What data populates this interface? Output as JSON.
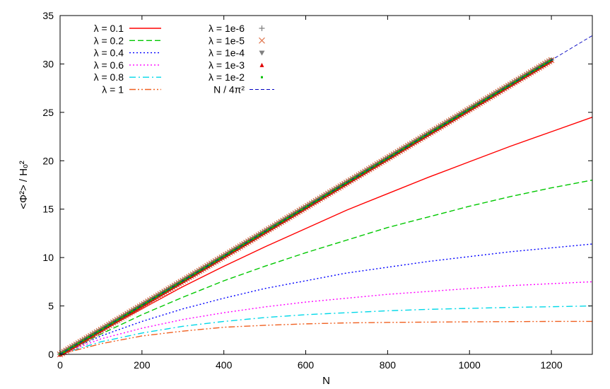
{
  "chart_data": {
    "type": "line",
    "xlabel": "N",
    "ylabel": "<Φ²> / Hₒ²",
    "xlim": [
      0,
      1300
    ],
    "ylim": [
      0,
      35
    ],
    "x_ticks": [
      "0",
      "200",
      "400",
      "600",
      "800",
      "1000",
      "1200"
    ],
    "y_ticks": [
      "0",
      "5",
      "10",
      "15",
      "20",
      "25",
      "30",
      "35"
    ],
    "grid": false,
    "legend_position": "top-left",
    "series": [
      {
        "name": "λ = 0.1",
        "style": "solid",
        "color": "#ff0000",
        "x": [
          0,
          100,
          200,
          300,
          400,
          500,
          600,
          700,
          800,
          900,
          1000,
          1100,
          1200,
          1300
        ],
        "values": [
          0,
          2.4,
          4.7,
          7.0,
          9.1,
          11.1,
          13.0,
          14.9,
          16.6,
          18.3,
          19.9,
          21.5,
          23.0,
          24.5
        ]
      },
      {
        "name": "λ = 0.2",
        "style": "dashed",
        "color": "#00c800",
        "x": [
          0,
          100,
          200,
          300,
          400,
          500,
          600,
          700,
          800,
          900,
          1000,
          1100,
          1200,
          1300
        ],
        "values": [
          0,
          2.1,
          4.1,
          5.9,
          7.6,
          9.1,
          10.5,
          11.8,
          13.1,
          14.2,
          15.3,
          16.3,
          17.2,
          18.0
        ]
      },
      {
        "name": "λ = 0.4",
        "style": "dotted",
        "color": "#0000ff",
        "x": [
          0,
          100,
          200,
          300,
          400,
          500,
          600,
          700,
          800,
          900,
          1000,
          1100,
          1200,
          1300
        ],
        "values": [
          0,
          1.9,
          3.4,
          4.7,
          5.8,
          6.8,
          7.6,
          8.4,
          9.0,
          9.6,
          10.1,
          10.6,
          11.0,
          11.4
        ]
      },
      {
        "name": "λ = 0.6",
        "style": "dotted",
        "color": "#ff00ff",
        "x": [
          0,
          100,
          200,
          300,
          400,
          500,
          600,
          700,
          800,
          900,
          1000,
          1100,
          1200,
          1300
        ],
        "values": [
          0,
          1.6,
          2.7,
          3.6,
          4.3,
          4.9,
          5.4,
          5.8,
          6.2,
          6.5,
          6.8,
          7.1,
          7.3,
          7.5
        ]
      },
      {
        "name": "λ = 0.8",
        "style": "dashdot",
        "color": "#00d8e8",
        "x": [
          0,
          100,
          200,
          300,
          400,
          500,
          600,
          700,
          800,
          900,
          1000,
          1100,
          1200,
          1300
        ],
        "values": [
          0,
          1.3,
          2.2,
          2.9,
          3.4,
          3.8,
          4.1,
          4.3,
          4.5,
          4.65,
          4.75,
          4.85,
          4.92,
          5.0
        ]
      },
      {
        "name": "λ = 1",
        "style": "dashdotdot",
        "color": "#f06020",
        "x": [
          0,
          100,
          200,
          300,
          400,
          500,
          600,
          700,
          800,
          900,
          1000,
          1100,
          1200,
          1300
        ],
        "values": [
          0,
          1.1,
          1.9,
          2.4,
          2.8,
          3.0,
          3.15,
          3.25,
          3.3,
          3.33,
          3.36,
          3.38,
          3.4,
          3.4
        ]
      },
      {
        "name": "λ = 1e-6",
        "style": "marker-plus",
        "color": "#808080",
        "x_range": [
          0,
          1200
        ],
        "slope": 0.02533
      },
      {
        "name": "λ = 1e-5",
        "style": "marker-cross",
        "color": "#e07850",
        "x_range": [
          0,
          1200
        ],
        "slope": 0.02533
      },
      {
        "name": "λ = 1e-4",
        "style": "marker-triangle-down",
        "color": "#808080",
        "x_range": [
          0,
          1200
        ],
        "slope": 0.02533
      },
      {
        "name": "λ = 1e-3",
        "style": "marker-triangle-up",
        "color": "#e00000",
        "x_range": [
          0,
          1200
        ],
        "slope": 0.02533
      },
      {
        "name": "λ = 1e-2",
        "style": "marker-dot",
        "color": "#00c000",
        "x_range": [
          0,
          1200
        ],
        "slope": 0.02533
      },
      {
        "name": "N / 4π²",
        "style": "dashed-thin",
        "color": "#0000c0",
        "x": [
          0,
          1300
        ],
        "values": [
          0,
          32.93
        ]
      }
    ]
  }
}
